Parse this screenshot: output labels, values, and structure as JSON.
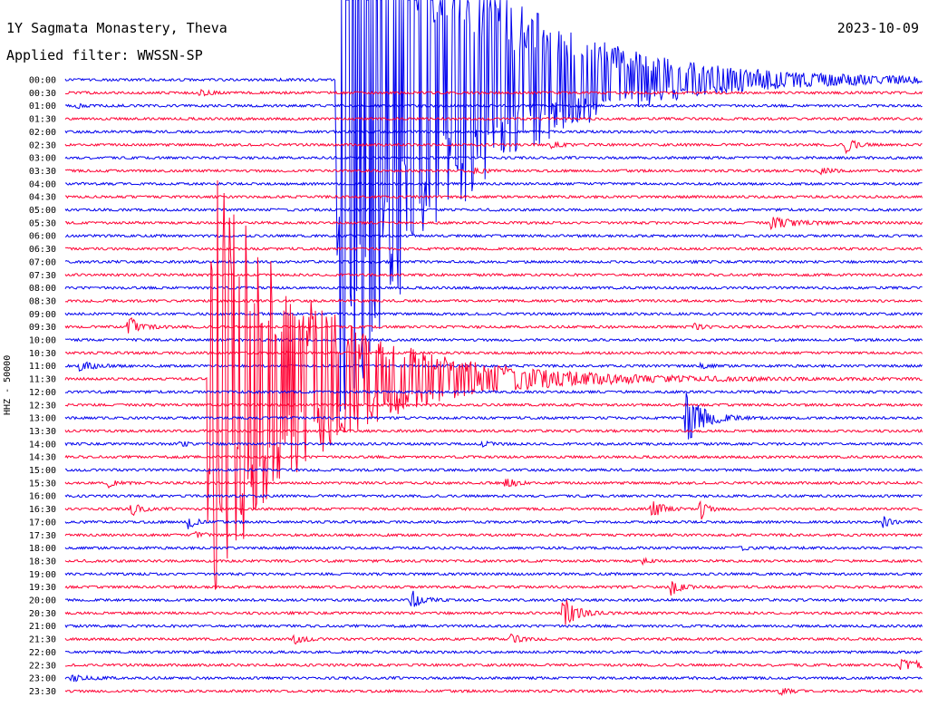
{
  "header": {
    "station": "1Y Sagmata Monastery, Theva",
    "date": "2023-10-09",
    "filter": "Applied filter: WWSSN-SP"
  },
  "chart_data": {
    "type": "line",
    "channel_label": "HHZ - 50000",
    "colors": [
      "#0000ee",
      "#ff0033"
    ],
    "row_labels": [
      "00:00",
      "00:30",
      "01:00",
      "01:30",
      "02:00",
      "02:30",
      "03:00",
      "03:30",
      "04:00",
      "04:30",
      "05:00",
      "05:30",
      "06:00",
      "06:30",
      "07:00",
      "07:30",
      "08:00",
      "08:30",
      "09:00",
      "09:30",
      "10:00",
      "10:30",
      "11:00",
      "11:30",
      "12:00",
      "12:30",
      "13:00",
      "13:30",
      "14:00",
      "14:30",
      "15:00",
      "15:30",
      "16:00",
      "16:30",
      "17:00",
      "17:30",
      "18:00",
      "18:30",
      "19:00",
      "19:30",
      "20:00",
      "20:30",
      "21:00",
      "21:30",
      "22:00",
      "22:30",
      "23:00",
      "23:30"
    ],
    "x_range_minutes": [
      0,
      30
    ],
    "events": [
      {
        "row": 0,
        "minute": 9.5,
        "amp": 420,
        "decay": 4,
        "clip": [
          0,
          1
        ]
      },
      {
        "row": 1,
        "minute": 4.7,
        "amp": 4,
        "decay": 0.3
      },
      {
        "row": 2,
        "minute": 0.4,
        "amp": 2,
        "decay": 0.3
      },
      {
        "row": 5,
        "minute": 17.0,
        "amp": 3,
        "decay": 0.4
      },
      {
        "row": 5,
        "minute": 27.3,
        "amp": 10,
        "decay": 0.3
      },
      {
        "row": 7,
        "minute": 14.3,
        "amp": 4,
        "decay": 0.3
      },
      {
        "row": 7,
        "minute": 26.4,
        "amp": 4,
        "decay": 0.3
      },
      {
        "row": 11,
        "minute": 24.7,
        "amp": 6,
        "decay": 0.8
      },
      {
        "row": 19,
        "minute": 2.2,
        "amp": 12,
        "decay": 0.4
      },
      {
        "row": 19,
        "minute": 22.0,
        "amp": 4,
        "decay": 0.3
      },
      {
        "row": 22,
        "minute": 0.5,
        "amp": 5,
        "decay": 0.5
      },
      {
        "row": 22,
        "minute": 22.2,
        "amp": 3,
        "decay": 0.3
      },
      {
        "row": 23,
        "minute": 5.0,
        "amp": 250,
        "decay": 3.5,
        "clip": [
          1,
          0
        ]
      },
      {
        "row": 26,
        "minute": 21.7,
        "amp": 30,
        "decay": 0.6
      },
      {
        "row": 28,
        "minute": 4.0,
        "amp": 3,
        "decay": 0.3
      },
      {
        "row": 28,
        "minute": 14.6,
        "amp": 3,
        "decay": 0.3
      },
      {
        "row": 31,
        "minute": 1.5,
        "amp": 5,
        "decay": 0.2
      },
      {
        "row": 31,
        "minute": 15.4,
        "amp": 7,
        "decay": 0.3
      },
      {
        "row": 33,
        "minute": 2.3,
        "amp": 8,
        "decay": 0.3
      },
      {
        "row": 33,
        "minute": 20.5,
        "amp": 10,
        "decay": 0.4
      },
      {
        "row": 33,
        "minute": 22.2,
        "amp": 14,
        "decay": 0.2
      },
      {
        "row": 34,
        "minute": 4.3,
        "amp": 10,
        "decay": 0.2
      },
      {
        "row": 34,
        "minute": 28.6,
        "amp": 8,
        "decay": 0.2
      },
      {
        "row": 35,
        "minute": 4.5,
        "amp": 4,
        "decay": 0.3
      },
      {
        "row": 36,
        "minute": 23.6,
        "amp": 2,
        "decay": 0.3
      },
      {
        "row": 37,
        "minute": 20.2,
        "amp": 3,
        "decay": 0.2
      },
      {
        "row": 39,
        "minute": 21.2,
        "amp": 10,
        "decay": 0.3
      },
      {
        "row": 40,
        "minute": 12.1,
        "amp": 12,
        "decay": 0.3
      },
      {
        "row": 41,
        "minute": 17.4,
        "amp": 20,
        "decay": 0.4
      },
      {
        "row": 43,
        "minute": 8.0,
        "amp": 6,
        "decay": 0.3
      },
      {
        "row": 43,
        "minute": 15.6,
        "amp": 6,
        "decay": 0.3
      },
      {
        "row": 45,
        "minute": 29.2,
        "amp": 5,
        "decay": 1.5
      },
      {
        "row": 46,
        "minute": 0.2,
        "amp": 3,
        "decay": 0.6
      },
      {
        "row": 47,
        "minute": 25.0,
        "amp": 4,
        "decay": 0.3
      }
    ]
  }
}
